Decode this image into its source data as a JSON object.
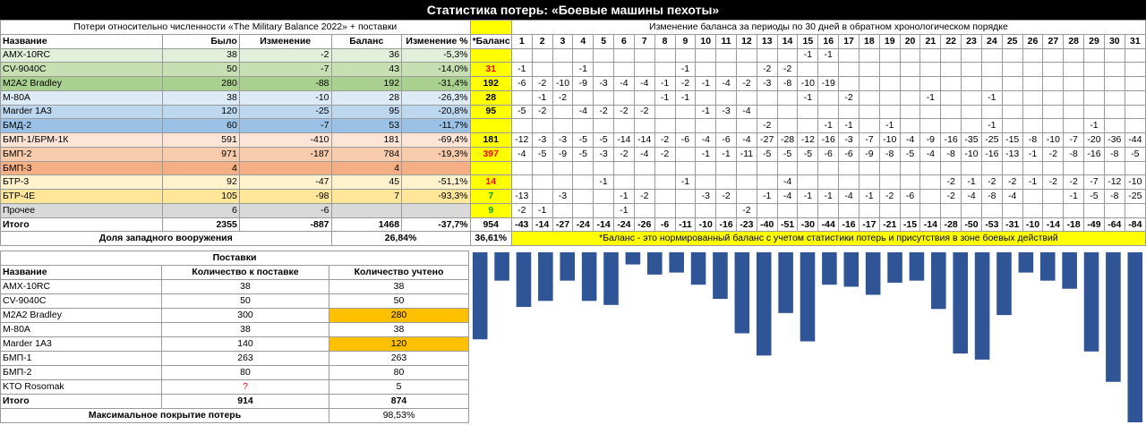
{
  "title": "Статистика потерь: «Боевые машины пехоты»",
  "left_header": "Потери относительно численности «The Military Balance 2022» + поставки",
  "right_header": "Изменение баланса за периоды по 30 дней в обратном хронологическом порядке",
  "columns": {
    "name": "Название",
    "was": "Было",
    "change": "Изменение",
    "balance": "Баланс",
    "change_pct": "Изменение %",
    "nbalance": "*Баланс"
  },
  "periods": [
    "1",
    "2",
    "3",
    "4",
    "5",
    "6",
    "7",
    "8",
    "9",
    "10",
    "11",
    "12",
    "13",
    "14",
    "15",
    "16",
    "17",
    "18",
    "19",
    "20",
    "21",
    "22",
    "23",
    "24",
    "25",
    "26",
    "27",
    "28",
    "29",
    "30",
    "31"
  ],
  "rows": [
    {
      "name": "AMX-10RC",
      "was": "38",
      "change": "-2",
      "balance": "36",
      "pct": "-5,3%",
      "nb": "",
      "nb_color": "",
      "p": [
        "",
        "",
        "",
        "",
        "",
        "",
        "",
        "",
        "",
        "",
        "",
        "",
        "",
        "",
        "-1",
        "-1",
        "",
        "",
        "",
        "",
        "",
        "",
        "",
        "",
        "",
        "",
        "",
        "",
        "",
        "",
        ""
      ]
    },
    {
      "name": "CV-9040C",
      "was": "50",
      "change": "-7",
      "balance": "43",
      "pct": "-14,0%",
      "nb": "31",
      "nb_color": "red",
      "p": [
        "-1",
        "",
        "",
        "-1",
        "",
        "",
        "",
        "",
        "-1",
        "",
        "",
        "",
        "-2",
        "-2",
        "",
        "",
        "",
        "",
        "",
        "",
        "",
        "",
        "",
        "",
        "",
        "",
        "",
        "",
        "",
        "",
        ""
      ]
    },
    {
      "name": "M2A2 Bradley",
      "was": "280",
      "change": "-88",
      "balance": "192",
      "pct": "-31,4%",
      "nb": "192",
      "nb_color": "",
      "p": [
        "-6",
        "-2",
        "-10",
        "-9",
        "-3",
        "-4",
        "-4",
        "-1",
        "-2",
        "-1",
        "-4",
        "-2",
        "-3",
        "-8",
        "-10",
        "-19",
        "",
        "",
        "",
        "",
        "",
        "",
        "",
        "",
        "",
        "",
        "",
        "",
        "",
        "",
        ""
      ]
    },
    {
      "name": "M-80A",
      "was": "38",
      "change": "-10",
      "balance": "28",
      "pct": "-26,3%",
      "nb": "28",
      "nb_color": "",
      "p": [
        "",
        "-1",
        "-2",
        "",
        "",
        "",
        "",
        "-1",
        "-1",
        "",
        "",
        "",
        "",
        "",
        "-1",
        "",
        "-2",
        "",
        "",
        "",
        "-1",
        "",
        "",
        "-1",
        "",
        "",
        "",
        "",
        "",
        "",
        ""
      ]
    },
    {
      "name": "Marder 1A3",
      "was": "120",
      "change": "-25",
      "balance": "95",
      "pct": "-20,8%",
      "nb": "95",
      "nb_color": "",
      "p": [
        "-5",
        "-2",
        "",
        "-4",
        "-2",
        "-2",
        "-2",
        "",
        "",
        "-1",
        "-3",
        "-4",
        "",
        "",
        "",
        "",
        "",
        "",
        "",
        "",
        "",
        "",
        "",
        "",
        "",
        "",
        "",
        "",
        "",
        "",
        ""
      ]
    },
    {
      "name": "БМД-2",
      "was": "60",
      "change": "-7",
      "balance": "53",
      "pct": "-11,7%",
      "nb": "",
      "nb_color": "",
      "p": [
        "",
        "",
        "",
        "",
        "",
        "",
        "",
        "",
        "",
        "",
        "",
        "",
        "-2",
        "",
        "",
        "-1",
        "-1",
        "",
        "-1",
        "",
        "",
        "",
        "",
        "-1",
        "",
        "",
        "",
        "",
        "-1",
        "",
        ""
      ]
    },
    {
      "name": "БМП-1/БРМ-1К",
      "was": "591",
      "change": "-410",
      "balance": "181",
      "pct": "-69,4%",
      "nb": "181",
      "nb_color": "",
      "p": [
        "-12",
        "-3",
        "-3",
        "-5",
        "-5",
        "-14",
        "-14",
        "-2",
        "-6",
        "-4",
        "-6",
        "-4",
        "-27",
        "-28",
        "-12",
        "-16",
        "-3",
        "-7",
        "-10",
        "-4",
        "-9",
        "-16",
        "-35",
        "-25",
        "-15",
        "-8",
        "-10",
        "-7",
        "-20",
        "-36",
        "-44"
      ]
    },
    {
      "name": "БМП-2",
      "was": "971",
      "change": "-187",
      "balance": "784",
      "pct": "-19,3%",
      "nb": "397",
      "nb_color": "red",
      "p": [
        "-4",
        "-5",
        "-9",
        "-5",
        "-3",
        "-2",
        "-4",
        "-2",
        "",
        "-1",
        "-1",
        "-11",
        "-5",
        "-5",
        "-5",
        "-6",
        "-6",
        "-9",
        "-8",
        "-5",
        "-4",
        "-8",
        "-10",
        "-16",
        "-13",
        "-1",
        "-2",
        "-8",
        "-16",
        "-8",
        "-5"
      ]
    },
    {
      "name": "БМП-3",
      "was": "4",
      "change": "",
      "balance": "4",
      "pct": "",
      "nb": "",
      "nb_color": "",
      "p": [
        "",
        "",
        "",
        "",
        "",
        "",
        "",
        "",
        "",
        "",
        "",
        "",
        "",
        "",
        "",
        "",
        "",
        "",
        "",
        "",
        "",
        "",
        "",
        "",
        "",
        "",
        "",
        "",
        "",
        "",
        ""
      ]
    },
    {
      "name": "БТР-3",
      "was": "92",
      "change": "-47",
      "balance": "45",
      "pct": "-51,1%",
      "nb": "14",
      "nb_color": "red",
      "p": [
        "",
        "",
        "",
        "",
        "-1",
        "",
        "",
        "",
        "-1",
        "",
        "",
        "",
        "",
        "-4",
        "",
        "",
        "",
        "",
        "",
        "",
        "",
        "-2",
        "-1",
        "-2",
        "-2",
        "-1",
        "-2",
        "-2",
        "-7",
        "-12",
        "-10"
      ]
    },
    {
      "name": "БТР-4Е",
      "was": "105",
      "change": "-98",
      "balance": "7",
      "pct": "-93,3%",
      "nb": "7",
      "nb_color": "grn",
      "p": [
        "-13",
        "",
        "-3",
        "",
        "",
        "-1",
        "-2",
        "",
        "",
        "-3",
        "-2",
        "",
        "-1",
        "-4",
        "-1",
        "-1",
        "-4",
        "-1",
        "-2",
        "-6",
        "",
        "-2",
        "-4",
        "-8",
        "-4",
        "",
        "",
        "-1",
        "-5",
        "-8",
        "-25"
      ]
    },
    {
      "name": "Прочее",
      "was": "6",
      "change": "-6",
      "balance": "",
      "pct": "",
      "nb": "9",
      "nb_color": "grn",
      "p": [
        "-2",
        "-1",
        "",
        "",
        "",
        "-1",
        "",
        "",
        "",
        "",
        "",
        "-2",
        "",
        "",
        "",
        "",
        "",
        "",
        "",
        "",
        "",
        "",
        "",
        "",
        "",
        "",
        "",
        "",
        "",
        "",
        ""
      ]
    }
  ],
  "total": {
    "name": "Итого",
    "was": "2355",
    "change": "-887",
    "balance": "1468",
    "pct": "-37,7%",
    "nb": "954",
    "p": [
      "-43",
      "-14",
      "-27",
      "-24",
      "-14",
      "-24",
      "-26",
      "-6",
      "-11",
      "-10",
      "-16",
      "-23",
      "-40",
      "-51",
      "-30",
      "-44",
      "-16",
      "-17",
      "-21",
      "-15",
      "-14",
      "-28",
      "-50",
      "-53",
      "-31",
      "-10",
      "-14",
      "-18",
      "-49",
      "-64",
      "-84"
    ]
  },
  "western": {
    "label": "Доля западного вооружения",
    "value": "26,84%",
    "nb": "36,61%"
  },
  "note": "*Баланс - это нормированный баланс с учетом статистики потерь и присутствия в зоне боевых действий",
  "supply": {
    "title": "Поставки",
    "col_name": "Название",
    "col_qty": "Количество к поставке",
    "col_counted": "Количество учтено",
    "rows": [
      {
        "name": "AMX-10RC",
        "qty": "38",
        "counted": "38",
        "hl": false,
        "q_red": false
      },
      {
        "name": "CV-9040C",
        "qty": "50",
        "counted": "50",
        "hl": false,
        "q_red": false
      },
      {
        "name": "M2A2 Bradley",
        "qty": "300",
        "counted": "280",
        "hl": true,
        "q_red": false
      },
      {
        "name": "M-80A",
        "qty": "38",
        "counted": "38",
        "hl": false,
        "q_red": false
      },
      {
        "name": "Marder 1A3",
        "qty": "140",
        "counted": "120",
        "hl": true,
        "q_red": false
      },
      {
        "name": "БМП-1",
        "qty": "263",
        "counted": "263",
        "hl": false,
        "q_red": false
      },
      {
        "name": "БМП-2",
        "qty": "80",
        "counted": "80",
        "hl": false,
        "q_red": false
      },
      {
        "name": "KTO Rosomak",
        "qty": "?",
        "counted": "5",
        "hl": false,
        "q_red": true
      }
    ],
    "total": {
      "name": "Итого",
      "qty": "914",
      "counted": "874"
    },
    "coverage": {
      "label": "Максимальное покрытие потерь",
      "value": "98,53%"
    }
  },
  "chart_data": {
    "type": "bar",
    "categories": [
      "1",
      "2",
      "3",
      "4",
      "5",
      "6",
      "7",
      "8",
      "9",
      "10",
      "11",
      "12",
      "13",
      "14",
      "15",
      "16",
      "17",
      "18",
      "19",
      "20",
      "21",
      "22",
      "23",
      "24",
      "25",
      "26",
      "27",
      "28",
      "29",
      "30",
      "31"
    ],
    "values": [
      -43,
      -14,
      -27,
      -24,
      -14,
      -24,
      -26,
      -6,
      -11,
      -10,
      -16,
      -23,
      -40,
      -51,
      -30,
      -44,
      -16,
      -17,
      -21,
      -15,
      -14,
      -28,
      -50,
      -53,
      -31,
      -10,
      -14,
      -18,
      -49,
      -64,
      -84
    ],
    "ylim": [
      -84,
      0
    ],
    "color": "#2f5597"
  }
}
